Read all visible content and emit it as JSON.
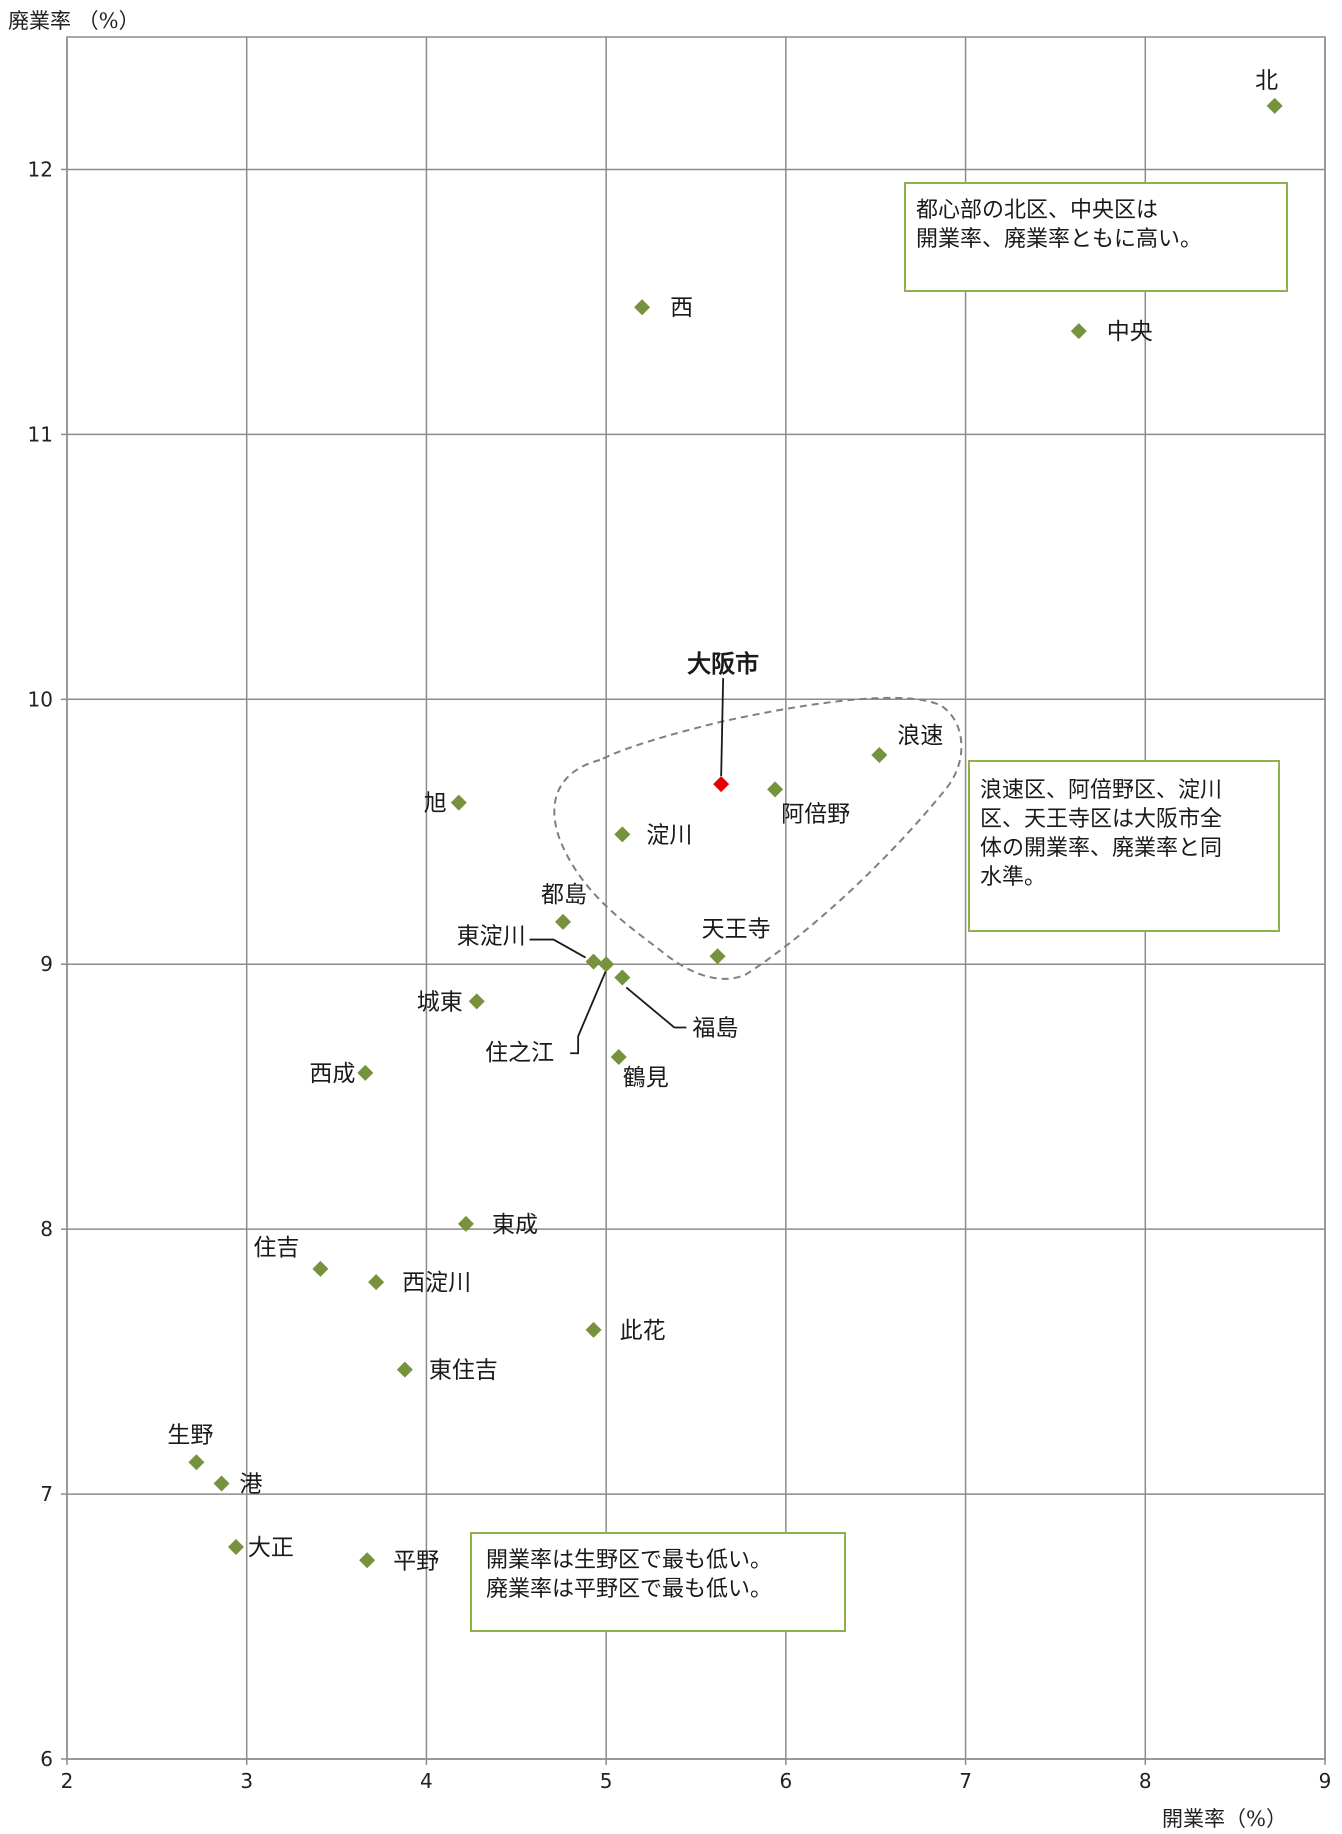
{
  "chart_data": {
    "type": "scatter",
    "xlabel": "開業率（%）",
    "ylabel": "廃業率 （%）",
    "xlim": [
      2,
      9
    ],
    "ylim": [
      6,
      12.5
    ],
    "x_ticks": [
      2,
      3,
      4,
      5,
      6,
      7,
      8,
      9
    ],
    "y_ticks": [
      6,
      7,
      8,
      9,
      10,
      11,
      12
    ],
    "grid": true,
    "marker": "diamond",
    "marker_color": "#76923c",
    "highlight_color": "#e60000",
    "points": [
      {
        "name": "北",
        "x": 8.72,
        "y": 12.24
      },
      {
        "name": "西",
        "x": 5.2,
        "y": 11.48
      },
      {
        "name": "中央",
        "x": 7.63,
        "y": 11.39
      },
      {
        "name": "大阪市",
        "x": 5.64,
        "y": 9.68,
        "highlight": true
      },
      {
        "name": "浪速",
        "x": 6.52,
        "y": 9.79
      },
      {
        "name": "阿倍野",
        "x": 5.94,
        "y": 9.66
      },
      {
        "name": "淀川",
        "x": 5.09,
        "y": 9.49
      },
      {
        "name": "旭",
        "x": 4.18,
        "y": 9.61
      },
      {
        "name": "天王寺",
        "x": 5.62,
        "y": 9.03
      },
      {
        "name": "都島",
        "x": 4.76,
        "y": 9.16
      },
      {
        "name": "東淀川",
        "x": 4.93,
        "y": 9.01
      },
      {
        "name": "住之江",
        "x": 5.0,
        "y": 9.0
      },
      {
        "name": "福島",
        "x": 5.09,
        "y": 8.95
      },
      {
        "name": "城東",
        "x": 4.28,
        "y": 8.86
      },
      {
        "name": "西成",
        "x": 3.66,
        "y": 8.59
      },
      {
        "name": "鶴見",
        "x": 5.07,
        "y": 8.65
      },
      {
        "name": "東成",
        "x": 4.22,
        "y": 8.02
      },
      {
        "name": "住吉",
        "x": 3.41,
        "y": 7.85
      },
      {
        "name": "西淀川",
        "x": 3.72,
        "y": 7.8
      },
      {
        "name": "此花",
        "x": 4.93,
        "y": 7.62
      },
      {
        "name": "東住吉",
        "x": 3.88,
        "y": 7.47
      },
      {
        "name": "生野",
        "x": 2.72,
        "y": 7.12
      },
      {
        "name": "港",
        "x": 2.86,
        "y": 7.04
      },
      {
        "name": "大正",
        "x": 2.94,
        "y": 6.8
      },
      {
        "name": "平野",
        "x": 3.67,
        "y": 6.75
      }
    ],
    "annotations": [
      "都心部の北区、中央区は\n開業率、廃業率ともに高い。",
      "浪速区、阿倍野区、淀川\n区、天王寺区は大阪市全\n体の開業率、廃業率と同\n水準。",
      "開業率は生野区で最も低い。\n廃業率は平野区で最も低い。"
    ]
  }
}
